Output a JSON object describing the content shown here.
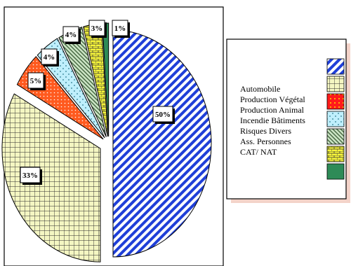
{
  "chart_data": {
    "type": "pie",
    "slices": [
      {
        "label": "Automobile",
        "value": 50,
        "data_label": "50%",
        "color": "#1f3fd8",
        "pattern": "diagonal-stripes"
      },
      {
        "label": "Production Végétale",
        "value": 33,
        "data_label": "33%",
        "color": "#f4f6c2",
        "pattern": "grid"
      },
      {
        "label": "Production Animale",
        "value": 5,
        "data_label": "5%",
        "color": "#ff5a1f",
        "pattern": "dots"
      },
      {
        "label": "Incendie Bâtiments",
        "value": 4,
        "data_label": "4%",
        "color": "#bfeffc",
        "pattern": "sparse-dots"
      },
      {
        "label": "Risques Divers",
        "value": 4,
        "data_label": "4%",
        "color": "#cfe8c8",
        "pattern": "diagonal-hatch"
      },
      {
        "label": "Ass. Personnes",
        "value": 3,
        "data_label": "3%",
        "color": "#f7f63a",
        "pattern": "brick"
      },
      {
        "label": "CAT/ NAT",
        "value": 1,
        "data_label": "1%",
        "color": "#2e8b57",
        "pattern": "solid"
      }
    ],
    "legend_entries": [
      "Automobile",
      "Production Végétal",
      "Production Animal",
      "Incendie Bâtiments",
      "Risques Divers",
      "Ass. Personnes",
      "CAT/ NAT"
    ],
    "legend_position": "right",
    "exploded": true,
    "data_labels_shown": true
  }
}
